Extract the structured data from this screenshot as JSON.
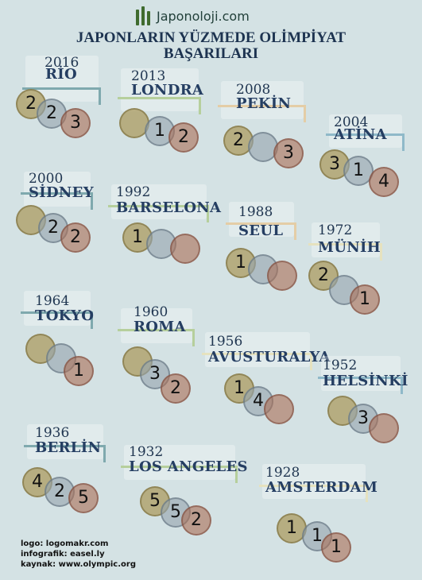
{
  "site": {
    "name": "Japonoloji.com"
  },
  "title": {
    "line1": "JAPONLARIN YÜZMEDE OLİMPİYAT",
    "line2": "BAŞARILARI"
  },
  "colors": {
    "background": "#d4e2e4",
    "gold": "#aa985a",
    "silver": "#96a5af",
    "bronze": "#aa6e55"
  },
  "games": [
    {
      "year": "2016",
      "city": "RİO",
      "gold": "2",
      "silver": "2",
      "bronze": "3"
    },
    {
      "year": "2013",
      "city": "LONDRA",
      "gold": "",
      "silver": "1",
      "bronze": "2"
    },
    {
      "year": "2008",
      "city": "PEKİN",
      "gold": "2",
      "silver": "",
      "bronze": "3"
    },
    {
      "year": "2004",
      "city": "ATİNA",
      "gold": "3",
      "silver": "1",
      "bronze": "4"
    },
    {
      "year": "2000",
      "city": "SİDNEY",
      "gold": "",
      "silver": "2",
      "bronze": "2"
    },
    {
      "year": "1992",
      "city": "BARSELONA",
      "gold": "1",
      "silver": "",
      "bronze": ""
    },
    {
      "year": "1988",
      "city": "SEUL",
      "gold": "1",
      "silver": "",
      "bronze": ""
    },
    {
      "year": "1972",
      "city": "MÜNİH",
      "gold": "2",
      "silver": "",
      "bronze": "1"
    },
    {
      "year": "1964",
      "city": "TOKYO",
      "gold": "",
      "silver": "",
      "bronze": "1"
    },
    {
      "year": "1960",
      "city": "ROMA",
      "gold": "",
      "silver": "3",
      "bronze": "2"
    },
    {
      "year": "1956",
      "city": "AVUSTURALYA",
      "gold": "1",
      "silver": "4",
      "bronze": ""
    },
    {
      "year": "1952",
      "city": "HELSİNKİ",
      "gold": "",
      "silver": "3",
      "bronze": ""
    },
    {
      "year": "1936",
      "city": "BERLİN",
      "gold": "4",
      "silver": "2",
      "bronze": "5"
    },
    {
      "year": "1932",
      "city": "LOS ANGELES",
      "gold": "5",
      "silver": "5",
      "bronze": "2"
    },
    {
      "year": "1928",
      "city": "AMSTERDAM",
      "gold": "1",
      "silver": "1",
      "bronze": "1"
    }
  ],
  "credits": {
    "logo": "logo: logomakr.com",
    "infographic": "infografik: easel.ly",
    "source": "kaynak: www.olympic.org"
  }
}
